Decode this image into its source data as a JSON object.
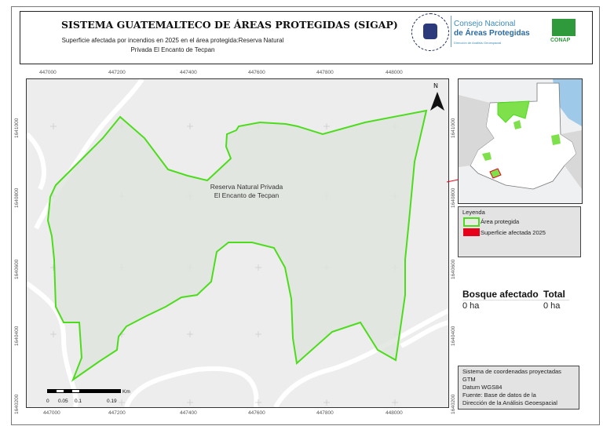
{
  "header": {
    "title": "SISTEMA GUATEMALTECO DE ÁREAS PROTEGIDAS  (SIGAP)",
    "subtitle": "Superficie afectada por incendios en 2025 en el área protegida:Reserva Natural Privada El Encanto de Tecpan",
    "logo_gov_text": "GOBIERNO DE LA REPÚBLICA GUATEMALA",
    "logo_conap_line1": "Consejo Nacional",
    "logo_conap_line2": "de Áreas Protegidas",
    "logo_conap_line3": "Dirección de Análisis Geoespacial",
    "logo_conap_badge": "CONAP"
  },
  "grid": {
    "x_labels": [
      "447000",
      "447200",
      "447400",
      "447600",
      "447800",
      "448000"
    ],
    "y_labels": [
      "1641000",
      "1640800",
      "1640600",
      "1640400",
      "1640200"
    ]
  },
  "map": {
    "area_label": "Reserva Natural Privada El Encanto de Tecpan",
    "north": "N",
    "scale": {
      "labels": [
        "0",
        "0.05",
        "0.1",
        "0.19"
      ],
      "unit": "Km"
    },
    "colors": {
      "boundary": "#4cdc1c",
      "affected": "#e8001a"
    }
  },
  "legend": {
    "title": "Leyenda",
    "items": [
      {
        "label": "Área protegida"
      },
      {
        "label": "Superficie afectada 2025"
      }
    ]
  },
  "stats": {
    "col1_header": "Bosque afectado",
    "col2_header": "Total",
    "col1_value": "0 ha",
    "col2_value": "0 ha"
  },
  "info": {
    "lines": [
      "Sistema de coordenadas proyectadas",
      "GTM",
      "Datum WGS84",
      "Fuente: Base de datos de la",
      "Dirección de la Análisis Geoespacial"
    ]
  }
}
